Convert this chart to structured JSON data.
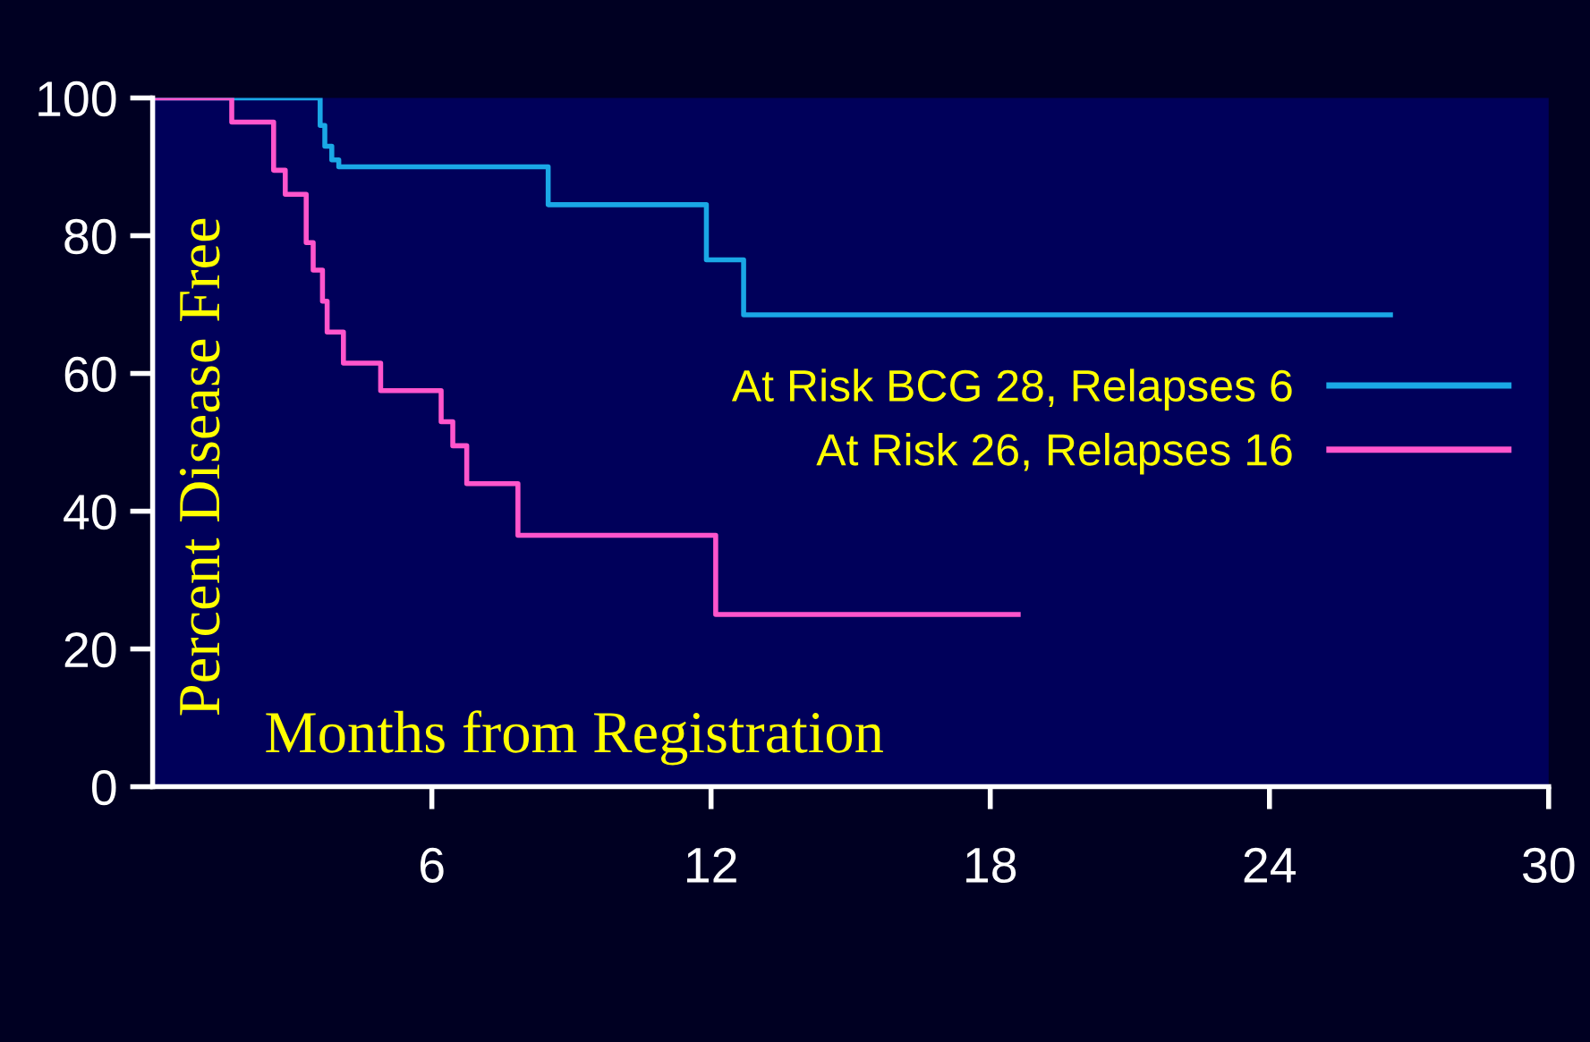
{
  "chart_data": {
    "type": "step",
    "xlabel": "Months from Registration",
    "ylabel": "Percent Disease Free",
    "xlim": [
      0,
      30
    ],
    "ylim": [
      0,
      100
    ],
    "xticks": [
      6,
      12,
      18,
      24,
      30
    ],
    "yticks": [
      0,
      20,
      40,
      60,
      80,
      100
    ],
    "grid": false,
    "legend": "right",
    "series": [
      {
        "name": "At Risk BCG 28, Relapses 6",
        "color": "#1aa8e6",
        "x": [
          0,
          3.6,
          3.7,
          3.85,
          4.0,
          8.5,
          11.9,
          12.7,
          26.6
        ],
        "values": [
          100,
          96,
          93,
          91,
          90,
          84.5,
          76.5,
          68.5,
          68.5
        ]
      },
      {
        "name": "At Risk 26, Relapses 16",
        "color": "#ff55cc",
        "x": [
          0,
          1.7,
          2.6,
          2.85,
          3.3,
          3.45,
          3.65,
          3.75,
          4.1,
          4.9,
          6.2,
          6.45,
          6.75,
          7.85,
          12.1,
          18.6
        ],
        "values": [
          100,
          96.5,
          89.5,
          86,
          79,
          75,
          70.5,
          66,
          61.5,
          57.5,
          53,
          49.5,
          44,
          36.5,
          25,
          25
        ]
      }
    ]
  }
}
